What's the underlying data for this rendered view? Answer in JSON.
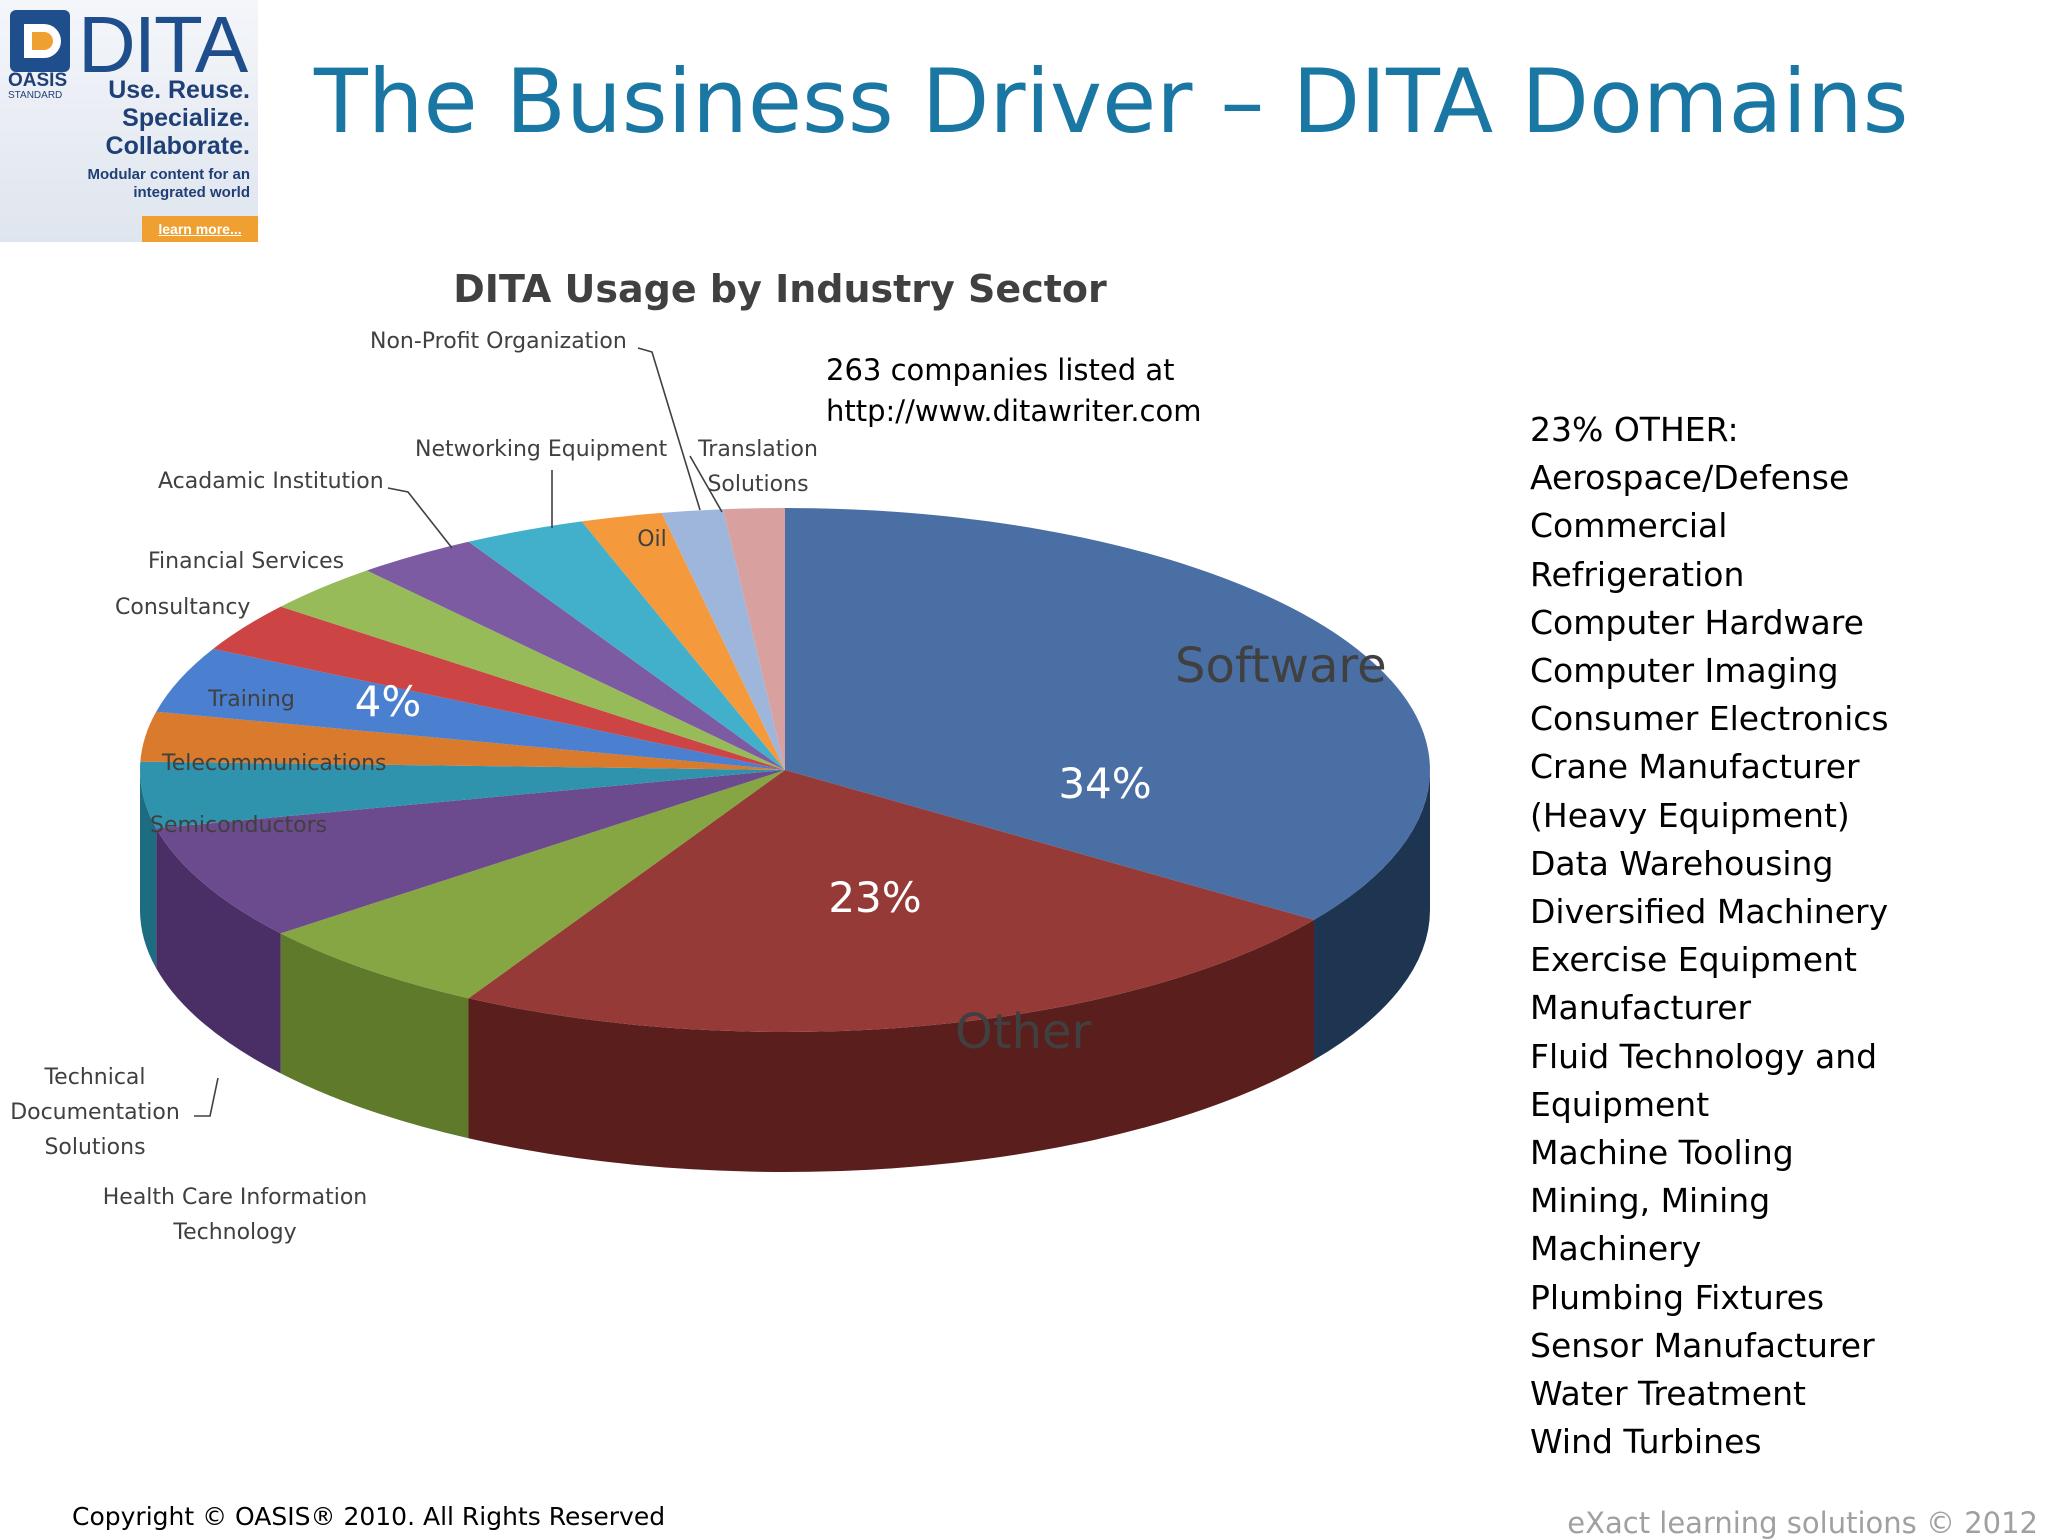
{
  "slide": {
    "title": "The Business Driver – DITA Domains",
    "logo": {
      "brand": "DITA",
      "org": "OASIS",
      "org_sub": "STANDARD",
      "tagline": [
        "Use. Reuse.",
        "Specialize.",
        "Collaborate."
      ],
      "subtitle": [
        "Modular content for an",
        "integrated world"
      ],
      "link": "learn more..."
    },
    "note": [
      "263 companies listed at",
      "http://www.ditawriter.com"
    ],
    "other_list": [
      "23% OTHER:",
      "Aerospace/Defense",
      "Commercial",
      "Refrigeration",
      "Computer Hardware",
      "Computer Imaging",
      "Consumer Electronics",
      "Crane Manufacturer",
      "(Heavy Equipment)",
      "Data Warehousing",
      "Diversified Machinery",
      "Exercise Equipment",
      "Manufacturer",
      "Fluid Technology and",
      "Equipment",
      "Machine Tooling",
      "Mining, Mining",
      "Machinery",
      "Plumbing Fixtures",
      "Sensor Manufacturer",
      "Water Treatment",
      "Wind Turbines"
    ],
    "copyright": "Copyright © OASIS® 2010. All Rights Reserved",
    "footer_right": "eXact learning solutions © 2012"
  },
  "chart_data": {
    "type": "pie",
    "title": "DITA Usage by Industry Sector",
    "start_angle_deg": -90,
    "slices": [
      {
        "label": "Software",
        "value": 34,
        "color": "#4a6fa5",
        "side": "#1e3552",
        "pct_label": "34%"
      },
      {
        "label": "Other",
        "value": 23,
        "color": "#953a36",
        "side": "#5a1f1d",
        "pct_label": "23%"
      },
      {
        "label": "Health Care Information Technology",
        "value": 6,
        "color": "#86a543",
        "side": "#5e7a2a",
        "pct_label": ""
      },
      {
        "label": "Technical Documentation Solutions",
        "value": 7,
        "color": "#6c4a8e",
        "side": "#4a2f66",
        "pct_label": ""
      },
      {
        "label": "Semiconductors",
        "value": 4,
        "color": "#2f93ad",
        "side": "#1e6c80",
        "pct_label": ""
      },
      {
        "label": "Telecommunications",
        "value": 3,
        "color": "#d97a2c",
        "side": "#a35618",
        "pct_label": ""
      },
      {
        "label": "Training",
        "value": 4,
        "color": "#4b7fcf",
        "side": "#2f5a96",
        "pct_label": "4%"
      },
      {
        "label": "Consultancy",
        "value": 3,
        "color": "#cc4444",
        "side": "#922a2a",
        "pct_label": ""
      },
      {
        "label": "Financial Services",
        "value": 3,
        "color": "#98bb59",
        "side": "#6e8a3b",
        "pct_label": ""
      },
      {
        "label": "Acadamic Institution",
        "value": 3,
        "color": "#7d5ba3",
        "side": "#583e78",
        "pct_label": ""
      },
      {
        "label": "Networking Equipment",
        "value": 3,
        "color": "#43b0cb",
        "side": "#2c8096",
        "pct_label": ""
      },
      {
        "label": "Oil",
        "value": 2,
        "color": "#f59a3c",
        "side": "#bd6f1f",
        "pct_label": ""
      },
      {
        "label": "Non-Profit Organization",
        "value": 1.5,
        "color": "#9eb6dc",
        "side": "#7088ad",
        "pct_label": ""
      },
      {
        "label": "Translation Solutions",
        "value": 1.5,
        "color": "#d9a0a0",
        "side": "#a87272",
        "pct_label": ""
      }
    ]
  }
}
